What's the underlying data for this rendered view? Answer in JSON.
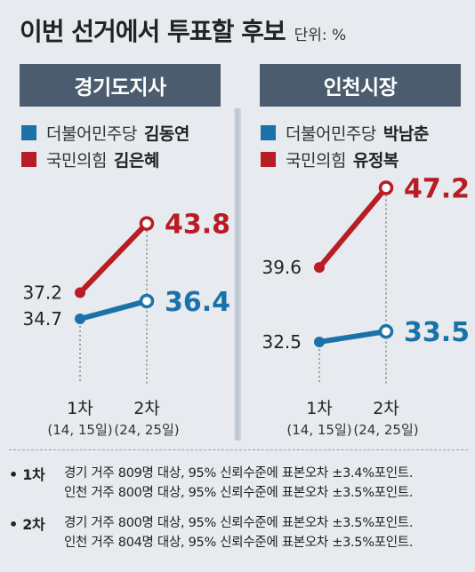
{
  "header": {
    "title": "이번 선거에서 투표할 후보",
    "unit": "단위: %"
  },
  "colors": {
    "blue": "#1a72a8",
    "red": "#b81c25",
    "header_bg": "#4a5c6e"
  },
  "chart_data": [
    {
      "type": "line",
      "title": "경기도지사",
      "categories": [
        "1차",
        "2차"
      ],
      "category_sub": [
        "(14, 15일)",
        "(24, 25일)"
      ],
      "series": [
        {
          "name": "더불어민주당",
          "candidate": "김동연",
          "color": "#1a72a8",
          "values": [
            34.7,
            36.4
          ],
          "labels": [
            "34.7",
            "36.4"
          ]
        },
        {
          "name": "국민의힘",
          "candidate": "김은혜",
          "color": "#b81c25",
          "values": [
            37.2,
            43.8
          ],
          "labels": [
            "37.2",
            "43.8"
          ]
        }
      ]
    },
    {
      "type": "line",
      "title": "인천시장",
      "categories": [
        "1차",
        "2차"
      ],
      "category_sub": [
        "(14, 15일)",
        "(24, 25일)"
      ],
      "series": [
        {
          "name": "더불어민주당",
          "candidate": "박남춘",
          "color": "#1a72a8",
          "values": [
            32.5,
            33.5
          ],
          "labels": [
            "32.5",
            "33.5"
          ]
        },
        {
          "name": "국민의힘",
          "candidate": "유정복",
          "color": "#b81c25",
          "values": [
            39.6,
            47.2
          ],
          "labels": [
            "39.6",
            "47.2"
          ]
        }
      ]
    }
  ],
  "notes": [
    {
      "label": "• 1차",
      "lines": [
        "경기 거주 809명 대상, 95% 신뢰수준에 표본오차 ±3.4%포인트.",
        "인천 거주 800명 대상, 95% 신뢰수준에 표본오차 ±3.5%포인트."
      ]
    },
    {
      "label": "• 2차",
      "lines": [
        "경기 거주 800명 대상, 95% 신뢰수준에 표본오차 ±3.5%포인트.",
        "인천 거주 804명 대상, 95% 신뢰수준에 표본오차 ±3.5%포인트."
      ]
    }
  ]
}
